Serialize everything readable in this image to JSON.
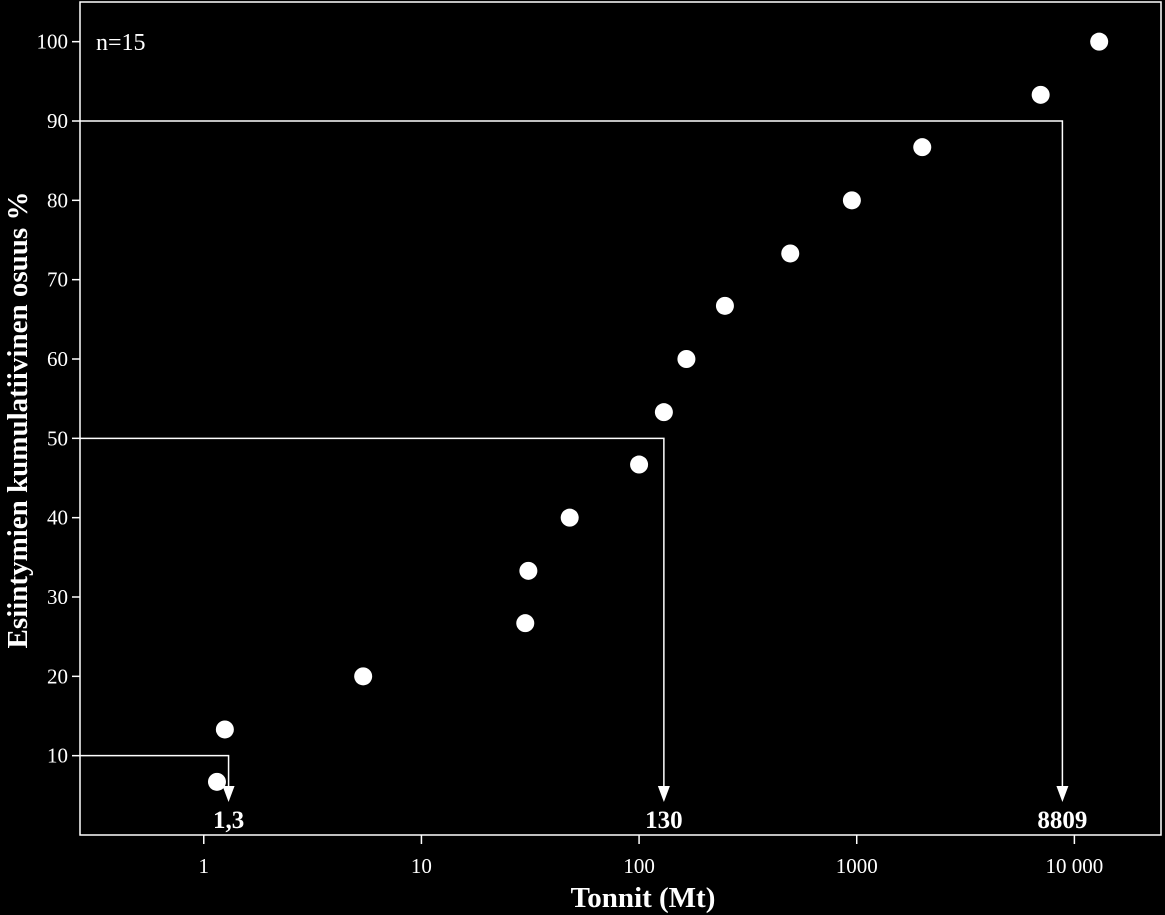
{
  "chart_data": {
    "type": "scatter",
    "xlabel": "Tonnit (Mt)",
    "ylabel": "Esiintymien kumulatiivinen osuus %",
    "x_scale": "log",
    "xlim": [
      0.27,
      25000
    ],
    "ylim": [
      0,
      105
    ],
    "annotation": "n=15",
    "x_ticks": [
      {
        "value": 1,
        "label": "1"
      },
      {
        "value": 10,
        "label": "10"
      },
      {
        "value": 100,
        "label": "100"
      },
      {
        "value": 1000,
        "label": "1000"
      },
      {
        "value": 10000,
        "label": "10 000"
      }
    ],
    "y_ticks": [
      10,
      20,
      30,
      40,
      50,
      60,
      70,
      80,
      90,
      100
    ],
    "points": [
      {
        "x": 1.15,
        "y": 6.7
      },
      {
        "x": 1.25,
        "y": 13.3
      },
      {
        "x": 5.4,
        "y": 20
      },
      {
        "x": 30,
        "y": 26.7
      },
      {
        "x": 31,
        "y": 33.3
      },
      {
        "x": 48,
        "y": 40
      },
      {
        "x": 100,
        "y": 46.7
      },
      {
        "x": 130,
        "y": 53.3
      },
      {
        "x": 165,
        "y": 60
      },
      {
        "x": 248,
        "y": 66.7
      },
      {
        "x": 495,
        "y": 73.3
      },
      {
        "x": 950,
        "y": 80
      },
      {
        "x": 2000,
        "y": 86.7
      },
      {
        "x": 7000,
        "y": 93.3
      },
      {
        "x": 13000,
        "y": 100
      }
    ],
    "reference_lines": [
      {
        "y": 10,
        "x": 1.3,
        "label": "1,3"
      },
      {
        "y": 50,
        "x": 130,
        "label": "130"
      },
      {
        "y": 90,
        "x": 8809,
        "label": "8809"
      }
    ],
    "grid": false,
    "colors": {
      "background": "#000000",
      "foreground": "#ffffff"
    }
  }
}
